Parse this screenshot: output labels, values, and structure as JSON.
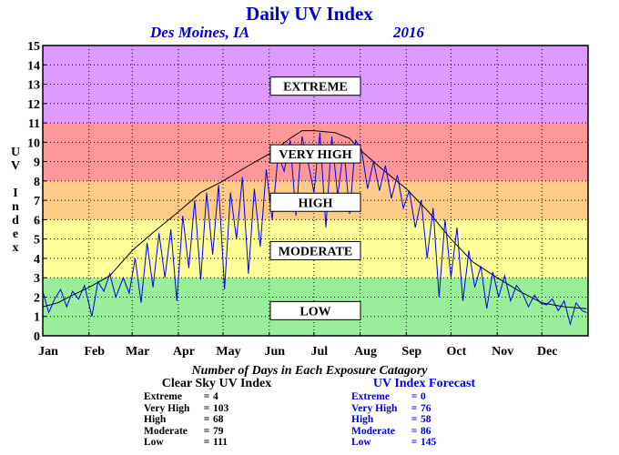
{
  "title": "Daily UV Index",
  "location": "Des Moines, IA",
  "year": "2016",
  "y_axis_label": "UV Index",
  "stats_title": "Number of Days in Each Exposure Catagory",
  "clear_sky": {
    "header": "Clear Sky UV Index",
    "rows": [
      {
        "label": "Extreme",
        "value": "4"
      },
      {
        "label": "Very High",
        "value": "103"
      },
      {
        "label": "High",
        "value": "68"
      },
      {
        "label": "Moderate",
        "value": "79"
      },
      {
        "label": "Low",
        "value": "111"
      }
    ]
  },
  "forecast": {
    "header": "UV Index Forecast",
    "rows": [
      {
        "label": "Extreme",
        "value": "0"
      },
      {
        "label": "Very High",
        "value": "76"
      },
      {
        "label": "High",
        "value": "58"
      },
      {
        "label": "Moderate",
        "value": "86"
      },
      {
        "label": "Low",
        "value": "145"
      }
    ]
  },
  "colors": {
    "low": "#99ee99",
    "moderate": "#ffff99",
    "high": "#ffcc88",
    "very_high": "#ff9999",
    "extreme": "#dd99ff",
    "clear_sky_line": "#000000",
    "forecast_line": "#0000ee",
    "title": "#0000cc"
  },
  "chart_data": {
    "type": "line",
    "title": "Daily UV Index",
    "xlabel": "",
    "ylabel": "UV Index",
    "ylim": [
      0,
      15
    ],
    "xlim": [
      0,
      366
    ],
    "yticks": [
      0,
      1,
      2,
      3,
      4,
      5,
      6,
      7,
      8,
      9,
      10,
      11,
      12,
      13,
      14,
      15
    ],
    "months": [
      "Jan",
      "Feb",
      "Mar",
      "Apr",
      "May",
      "Jun",
      "Jul",
      "Aug",
      "Sep",
      "Oct",
      "Nov",
      "Dec"
    ],
    "month_start_day": [
      0,
      31,
      60,
      91,
      121,
      152,
      182,
      213,
      244,
      274,
      305,
      335
    ],
    "grid": true,
    "bands": [
      {
        "label": "LOW",
        "from": 0,
        "to": 3,
        "label_at": 1.3,
        "color": "#99ee99"
      },
      {
        "label": "MODERATE",
        "from": 3,
        "to": 6,
        "label_at": 4.4,
        "color": "#ffff99"
      },
      {
        "label": "HIGH",
        "from": 6,
        "to": 8,
        "label_at": 6.9,
        "color": "#ffcc88"
      },
      {
        "label": "VERY HIGH",
        "from": 8,
        "to": 11,
        "label_at": 9.4,
        "color": "#ff9999"
      },
      {
        "label": "EXTREME",
        "from": 11,
        "to": 15,
        "label_at": 12.9,
        "color": "#dd99ff"
      }
    ],
    "series": [
      {
        "name": "Clear Sky UV Index",
        "color": "#000000",
        "x": [
          0,
          10,
          20,
          31,
          45,
          60,
          75,
          91,
          106,
          121,
          136,
          152,
          166,
          174,
          182,
          196,
          206,
          213,
          228,
          244,
          259,
          274,
          289,
          305,
          320,
          335,
          350,
          365
        ],
        "values": [
          1.5,
          1.7,
          2.1,
          2.5,
          3.1,
          4.4,
          5.4,
          6.4,
          7.4,
          8.0,
          8.7,
          9.4,
          10.2,
          10.6,
          10.6,
          10.5,
          10.2,
          9.6,
          8.6,
          7.6,
          6.4,
          5.0,
          3.8,
          3.0,
          2.3,
          1.7,
          1.5,
          1.4
        ]
      },
      {
        "name": "UV Index Forecast",
        "color": "#0000ee",
        "x": [
          0,
          4,
          8,
          12,
          16,
          20,
          24,
          28,
          33,
          37,
          41,
          45,
          49,
          54,
          58,
          62,
          66,
          70,
          74,
          78,
          82,
          86,
          90,
          94,
          98,
          102,
          106,
          110,
          114,
          118,
          122,
          126,
          130,
          134,
          138,
          142,
          146,
          150,
          154,
          158,
          162,
          166,
          170,
          174,
          178,
          182,
          186,
          190,
          194,
          198,
          202,
          206,
          210,
          214,
          218,
          222,
          226,
          230,
          234,
          238,
          242,
          246,
          250,
          254,
          258,
          262,
          266,
          270,
          274,
          278,
          282,
          286,
          290,
          294,
          298,
          302,
          306,
          310,
          314,
          318,
          322,
          326,
          330,
          334,
          338,
          342,
          346,
          350,
          354,
          358,
          362,
          365
        ],
        "values": [
          2.3,
          1.2,
          1.9,
          2.4,
          1.5,
          2.3,
          1.9,
          2.6,
          1.0,
          2.8,
          2.3,
          3.2,
          2.0,
          3.0,
          2.2,
          4.0,
          1.7,
          4.8,
          2.5,
          5.3,
          3.0,
          5.5,
          1.8,
          6.2,
          3.5,
          7.0,
          2.9,
          7.4,
          4.2,
          7.8,
          2.4,
          7.4,
          5.0,
          8.2,
          3.2,
          7.6,
          4.6,
          8.6,
          6.0,
          9.4,
          8.5,
          10.1,
          6.2,
          10.3,
          9.0,
          7.4,
          10.5,
          5.6,
          10.3,
          7.2,
          9.8,
          6.3,
          10.1,
          9.6,
          7.6,
          9.0,
          7.5,
          8.8,
          7.1,
          8.3,
          6.6,
          7.5,
          5.6,
          7.0,
          4.0,
          6.6,
          2.0,
          6.0,
          3.0,
          5.6,
          1.8,
          4.4,
          2.5,
          3.6,
          1.4,
          3.3,
          2.0,
          3.1,
          1.8,
          2.6,
          2.2,
          1.5,
          2.1,
          1.7,
          1.6,
          1.9,
          1.3,
          1.8,
          0.6,
          1.7,
          1.3,
          1.2
        ]
      }
    ]
  }
}
